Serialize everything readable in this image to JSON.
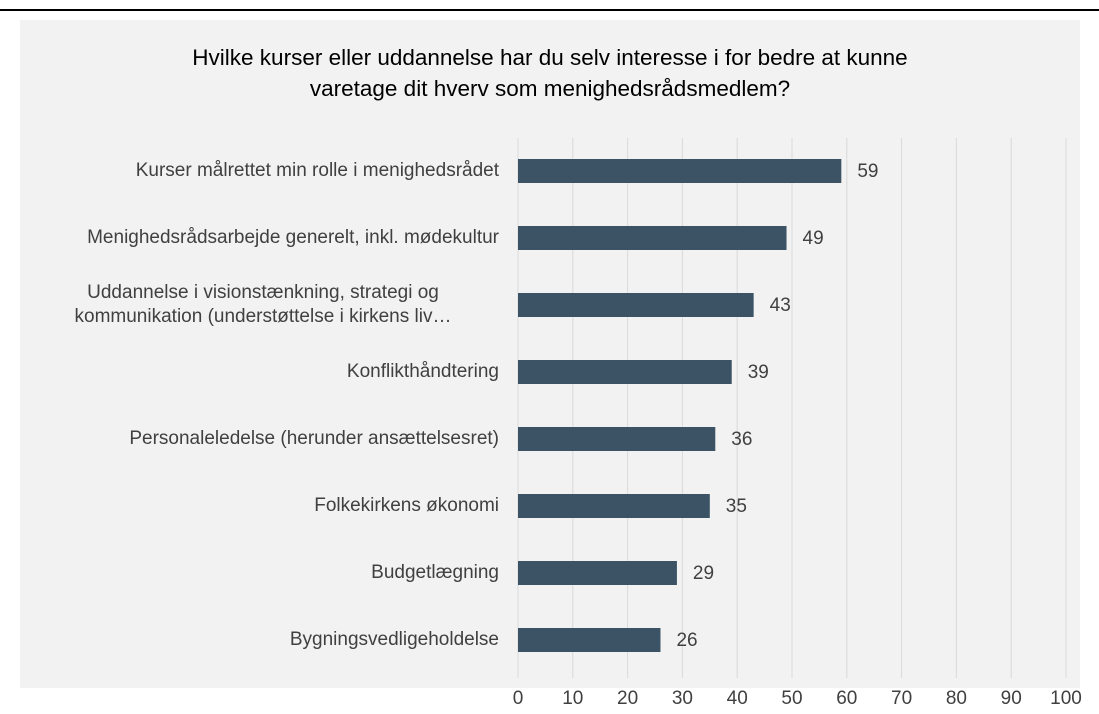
{
  "chart_data": {
    "type": "barh",
    "title": "Hvilke kurser eller uddannelse har du selv interesse i for bedre at kunne varetage dit hverv som menighedsrådsmedlem?",
    "categories": [
      "Kurser målrettet min rolle i menighedsrådet",
      "Menighedsrådsarbejde generelt, inkl. mødekultur",
      "Uddannelse i visionstænkning, strategi og kommunikation (understøttelse i kirkens liv…",
      "Konflikthåndtering",
      "Personaleledelse (herunder ansættelsesret)",
      "Folkekirkens økonomi",
      "Budgetlægning",
      "Bygningsvedligeholdelse"
    ],
    "values": [
      59,
      49,
      43,
      39,
      36,
      35,
      29,
      26
    ],
    "color": "#3b5364",
    "xlim": [
      0,
      100
    ],
    "xticks": [
      0,
      10,
      20,
      30,
      40,
      50,
      60,
      70,
      80,
      90,
      100
    ],
    "grid": true
  }
}
